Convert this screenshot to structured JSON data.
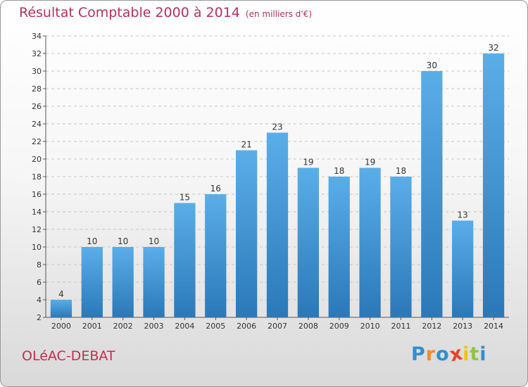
{
  "title": "Résultat Comptable 2000 à 2014",
  "subtitle": "(en milliers d'€)",
  "commune": "OLéAC-DEBAT",
  "logo": {
    "text": "Proxiti",
    "letters": [
      {
        "ch": "P",
        "color": "#2f8fd0"
      },
      {
        "ch": "r",
        "color": "#f28c28"
      },
      {
        "ch": "o",
        "color": "#2f8fd0"
      },
      {
        "ch": "x",
        "color": "#e8412b"
      },
      {
        "ch": "i",
        "color": "#f2c318"
      },
      {
        "ch": "t",
        "color": "#8cc63f"
      },
      {
        "ch": "i",
        "color": "#2f8fd0"
      }
    ]
  },
  "colors": {
    "bar_top": "#5aaee8",
    "bar_bottom": "#2b78b8",
    "title": "#b5305c",
    "commune": "#c0304a"
  },
  "chart_data": {
    "type": "bar",
    "categories": [
      "2000",
      "2001",
      "2002",
      "2003",
      "2004",
      "2005",
      "2006",
      "2007",
      "2008",
      "2009",
      "2010",
      "2011",
      "2012",
      "2013",
      "2014"
    ],
    "values": [
      4,
      10,
      10,
      10,
      15,
      16,
      21,
      23,
      19,
      18,
      19,
      18,
      30,
      13,
      32
    ],
    "ylim": [
      2,
      34
    ],
    "yticks": [
      2,
      4,
      6,
      8,
      10,
      12,
      14,
      16,
      18,
      20,
      22,
      24,
      26,
      28,
      30,
      32,
      34
    ],
    "grid": "horizontal-dashed",
    "data_labels": true
  }
}
